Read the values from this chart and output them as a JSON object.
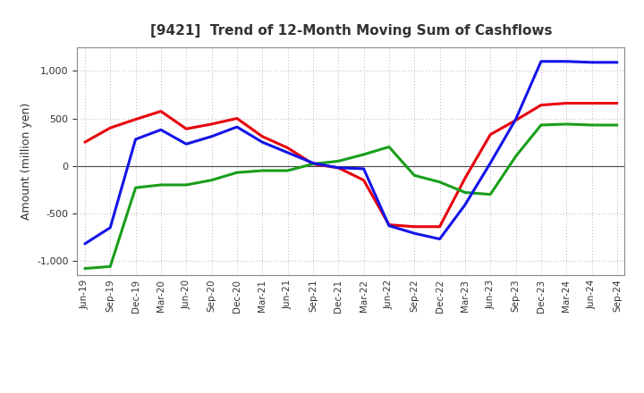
{
  "title": "[9421]  Trend of 12-Month Moving Sum of Cashflows",
  "ylabel": "Amount (million yen)",
  "x_labels": [
    "Jun-19",
    "Sep-19",
    "Dec-19",
    "Mar-20",
    "Jun-20",
    "Sep-20",
    "Dec-20",
    "Mar-21",
    "Jun-21",
    "Sep-21",
    "Dec-21",
    "Mar-22",
    "Jun-22",
    "Sep-22",
    "Dec-22",
    "Mar-23",
    "Jun-23",
    "Sep-23",
    "Dec-23",
    "Mar-24",
    "Jun-24",
    "Sep-24"
  ],
  "operating": [
    250,
    400,
    490,
    575,
    390,
    440,
    500,
    310,
    190,
    20,
    -20,
    -150,
    -620,
    -640,
    -640,
    -130,
    330,
    480,
    640,
    660,
    660,
    660
  ],
  "investing": [
    -1080,
    -1060,
    -230,
    -200,
    -200,
    -150,
    -70,
    -50,
    -50,
    20,
    50,
    120,
    200,
    -100,
    -170,
    -280,
    -300,
    100,
    430,
    440,
    430,
    430
  ],
  "free": [
    -820,
    -650,
    280,
    380,
    230,
    310,
    410,
    250,
    140,
    30,
    -20,
    -30,
    -630,
    -710,
    -770,
    -410,
    30,
    490,
    1100,
    1100,
    1090,
    1090
  ],
  "ylim": [
    -1150,
    1250
  ],
  "yticks": [
    -1000,
    -500,
    0,
    500,
    1000
  ],
  "operating_color": "#e8000d",
  "investing_color": "#1a9e1a",
  "free_color": "#1414e8",
  "background_color": "#ffffff",
  "grid_color": "#999999",
  "linewidth": 2.2,
  "title_color": "#333333",
  "tick_color": "#333333"
}
